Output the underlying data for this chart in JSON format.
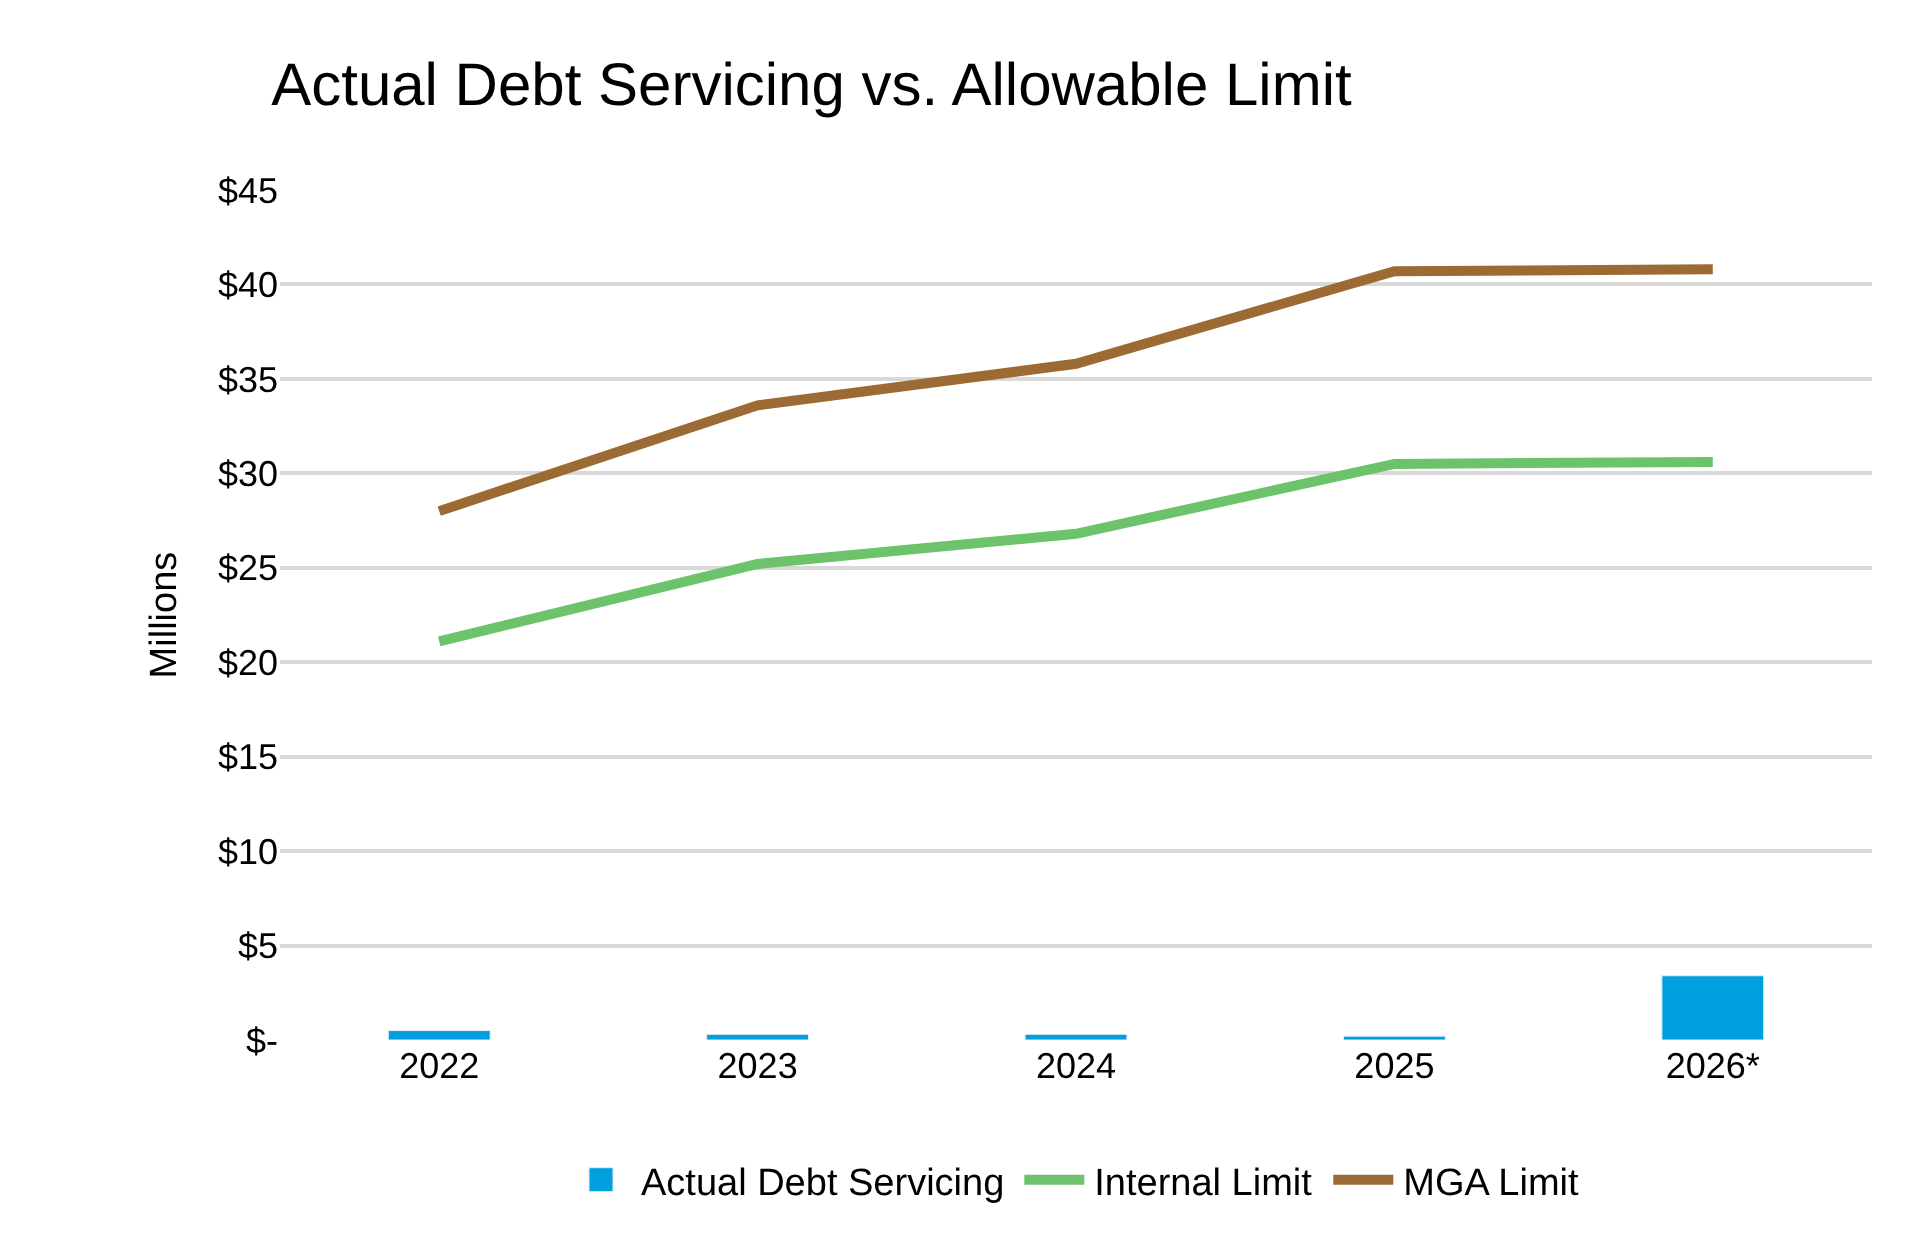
{
  "chart_data": {
    "type": "bar",
    "title": "Actual Debt Servicing vs. Allowable Limit",
    "ylabel": "Millions",
    "categories": [
      "2022",
      "2023",
      "2024",
      "2025",
      "2026*"
    ],
    "series": [
      {
        "name": "Actual Debt Servicing",
        "color": "#009fdf",
        "values": [
          0.5,
          0.3,
          0.3,
          0.2,
          3.4
        ]
      },
      {
        "name": "Internal Limit",
        "type": "line",
        "color": "#6cc36c",
        "values": [
          21.1,
          25.2,
          26.8,
          30.5,
          30.6
        ]
      },
      {
        "name": "MGA Limit",
        "type": "line",
        "color": "#9c6b33",
        "values": [
          28.0,
          33.6,
          35.8,
          40.7,
          40.8
        ]
      }
    ],
    "ylim": [
      0,
      45
    ],
    "yticks": [
      {
        "value": 0,
        "label": "$-"
      },
      {
        "value": 5,
        "label": "$5"
      },
      {
        "value": 10,
        "label": "$10"
      },
      {
        "value": 15,
        "label": "$15"
      },
      {
        "value": 20,
        "label": "$20"
      },
      {
        "value": 25,
        "label": "$25"
      },
      {
        "value": 30,
        "label": "$30"
      },
      {
        "value": 35,
        "label": "$35"
      },
      {
        "value": 40,
        "label": "$40"
      },
      {
        "value": 45,
        "label": "$45"
      }
    ],
    "grid": "y",
    "legend": "bottom",
    "marker": "none",
    "line_style": "solid"
  }
}
